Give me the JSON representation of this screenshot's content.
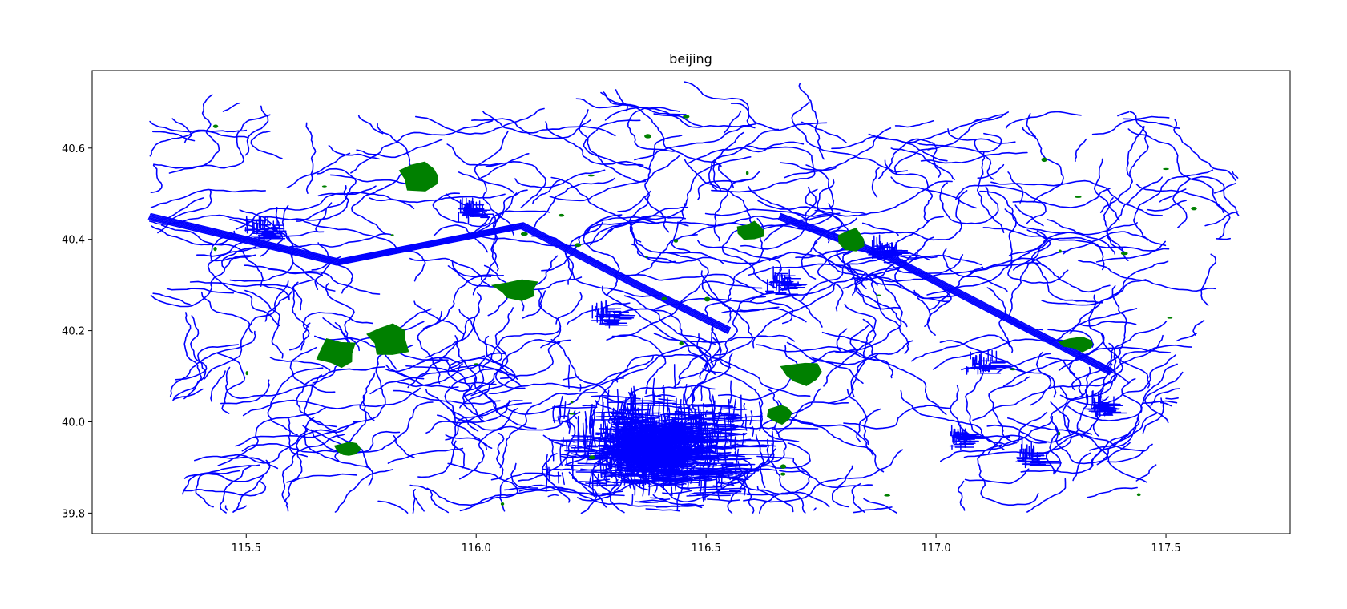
{
  "chart_data": {
    "type": "map",
    "title": "beijing",
    "xlabel": "",
    "ylabel": "",
    "xlim": [
      115.165,
      117.77
    ],
    "ylim": [
      39.755,
      40.77
    ],
    "x_ticks": [
      "115.5",
      "116.0",
      "116.5",
      "117.0",
      "117.5"
    ],
    "y_ticks": [
      "39.8",
      "40.0",
      "40.2",
      "40.4",
      "40.6"
    ],
    "grid": false,
    "legend": "none",
    "layers": [
      {
        "kind": "road-network",
        "color": "#0000ff"
      },
      {
        "kind": "green-areas",
        "color": "#008000"
      }
    ],
    "data_extent": {
      "lon": [
        115.29,
        117.66
      ],
      "lat": [
        39.8,
        40.72
      ]
    },
    "dense_core": {
      "lon": 116.38,
      "lat": 39.94
    },
    "green_areas": [
      {
        "name": "park-west-1",
        "lon": 115.7,
        "lat": 40.15
      },
      {
        "name": "park-west-2",
        "lon": 115.81,
        "lat": 40.18
      },
      {
        "name": "park-northwest",
        "lon": 115.88,
        "lat": 40.54
      },
      {
        "name": "park-sw",
        "lon": 115.72,
        "lat": 39.94
      },
      {
        "name": "park-central-north",
        "lon": 116.09,
        "lat": 40.29
      },
      {
        "name": "park-north",
        "lon": 116.6,
        "lat": 40.42
      },
      {
        "name": "park-east-1",
        "lon": 116.71,
        "lat": 40.11
      },
      {
        "name": "park-east-2",
        "lon": 116.82,
        "lat": 40.4
      },
      {
        "name": "park-east-3",
        "lon": 116.66,
        "lat": 40.02
      },
      {
        "name": "park-far-east",
        "lon": 117.31,
        "lat": 40.17
      }
    ],
    "expressways": [
      {
        "name": "northeast-expressway",
        "points": [
          [
            116.66,
            40.45
          ],
          [
            116.9,
            40.36
          ],
          [
            117.38,
            40.11
          ]
        ]
      },
      {
        "name": "northwest-expressway",
        "points": [
          [
            115.29,
            40.45
          ],
          [
            115.7,
            40.35
          ],
          [
            116.1,
            40.43
          ],
          [
            116.35,
            40.3
          ],
          [
            116.55,
            40.2
          ]
        ]
      }
    ]
  }
}
